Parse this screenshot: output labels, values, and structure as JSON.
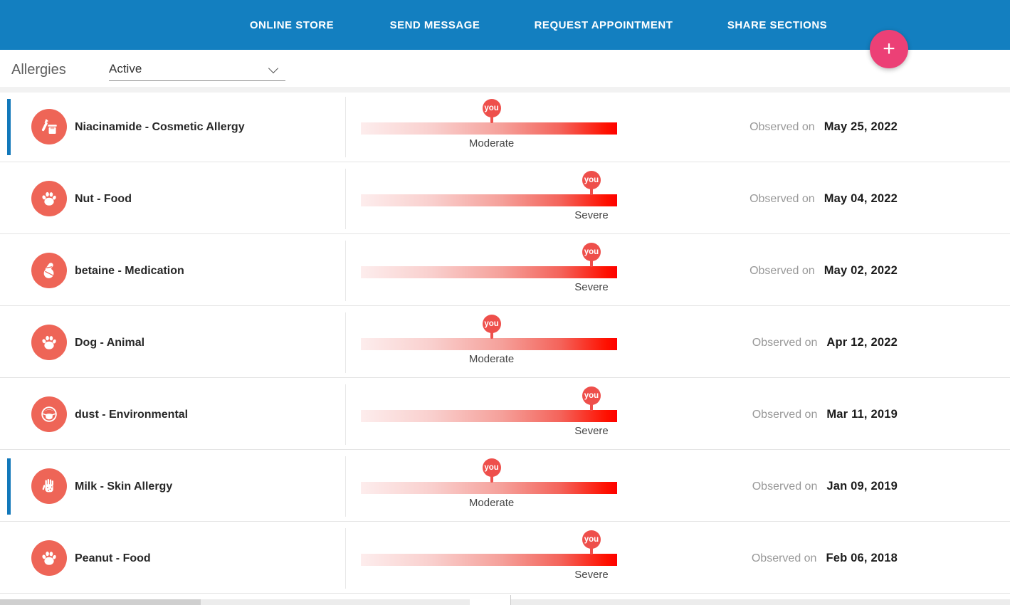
{
  "nav": {
    "items": [
      {
        "label": "ONLINE STORE"
      },
      {
        "label": "SEND MESSAGE"
      },
      {
        "label": "REQUEST APPOINTMENT"
      },
      {
        "label": "SHARE SECTIONS"
      }
    ]
  },
  "add_button": {
    "label": "+"
  },
  "header": {
    "title": "Allergies",
    "filter_value": "Active"
  },
  "list": {
    "observed_prefix": "Observed on",
    "pin_label": "you",
    "rows": [
      {
        "name": "Niacinamide - Cosmetic Allergy",
        "icon": "cosmetic-icon",
        "severity": "Moderate",
        "severity_pct": 51,
        "date": "May 25, 2022",
        "accent": true
      },
      {
        "name": "Nut - Food",
        "icon": "paw-icon",
        "severity": "Severe",
        "severity_pct": 90,
        "date": "May 04, 2022",
        "accent": false
      },
      {
        "name": "betaine - Medication",
        "icon": "pills-icon",
        "severity": "Severe",
        "severity_pct": 90,
        "date": "May 02, 2022",
        "accent": false
      },
      {
        "name": "Dog - Animal",
        "icon": "paw-icon",
        "severity": "Moderate",
        "severity_pct": 51,
        "date": "Apr 12, 2022",
        "accent": false
      },
      {
        "name": "dust - Environmental",
        "icon": "dust-mask-icon",
        "severity": "Severe",
        "severity_pct": 90,
        "date": "Mar 11, 2019",
        "accent": false
      },
      {
        "name": "Milk - Skin Allergy",
        "icon": "hand-rash-icon",
        "severity": "Moderate",
        "severity_pct": 51,
        "date": "Jan 09, 2019",
        "accent": true
      },
      {
        "name": "Peanut - Food",
        "icon": "paw-icon",
        "severity": "Severe",
        "severity_pct": 90,
        "date": "Feb 06, 2018",
        "accent": false
      }
    ]
  },
  "colors": {
    "nav_bg": "#137fc0",
    "accent_pink": "#ec4076",
    "coral_icon": "#ee6557",
    "pin_red": "#ee4f4b",
    "bar_gradient_end": "#ff0000",
    "accent_blue": "#1278ba"
  }
}
